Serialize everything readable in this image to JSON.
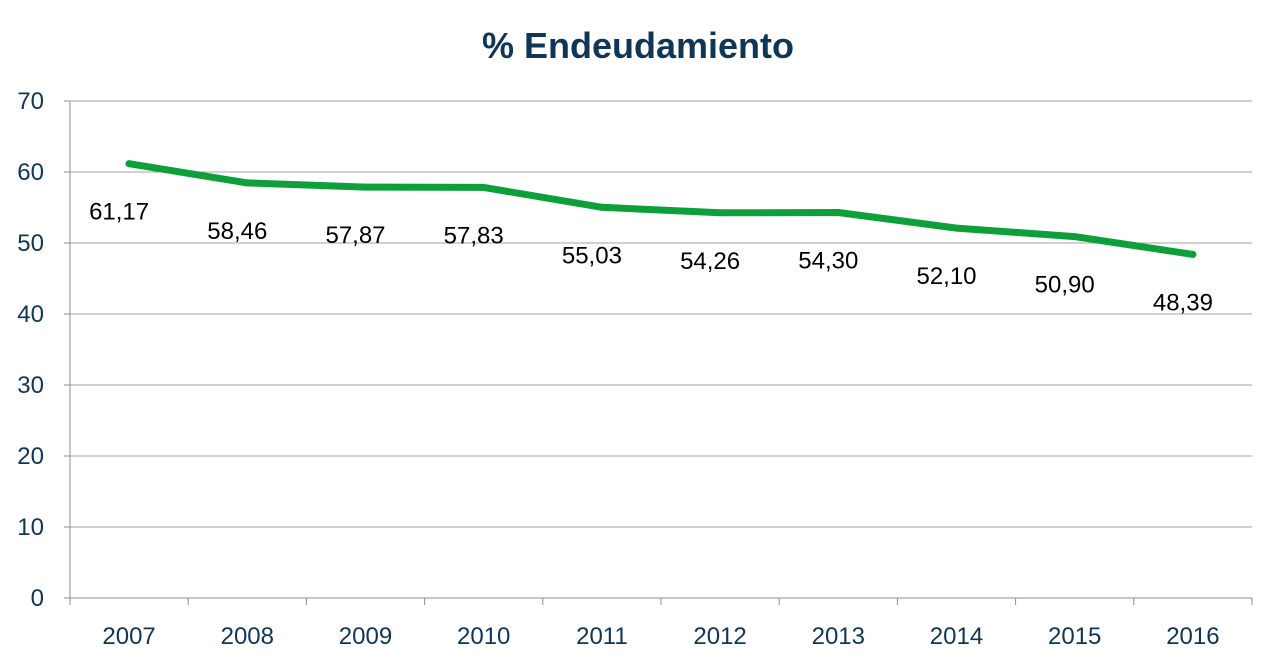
{
  "chart_data": {
    "type": "line",
    "title": "% Endeudamiento",
    "xlabel": "",
    "ylabel": "",
    "categories": [
      "2007",
      "2008",
      "2009",
      "2010",
      "2011",
      "2012",
      "2013",
      "2014",
      "2015",
      "2016"
    ],
    "series": [
      {
        "values": [
          61.17,
          58.46,
          57.87,
          57.83,
          55.03,
          54.26,
          54.3,
          52.1,
          50.9,
          48.39
        ],
        "labels": [
          "61,17",
          "58,46",
          "57,87",
          "57,83",
          "55,03",
          "54,26",
          "54,30",
          "52,10",
          "50,90",
          "48,39"
        ],
        "color": "#0DA03A"
      }
    ],
    "ylim": [
      0,
      70
    ],
    "yticks": [
      0,
      10,
      20,
      30,
      40,
      50,
      60,
      70
    ],
    "grid": true,
    "legend": "none",
    "colors": {
      "title": "#0F3557",
      "tick_labels": "#0F3557",
      "data_labels": "#000000",
      "gridlines": "#A6A6A6",
      "axis": "#8C8C8C"
    }
  }
}
